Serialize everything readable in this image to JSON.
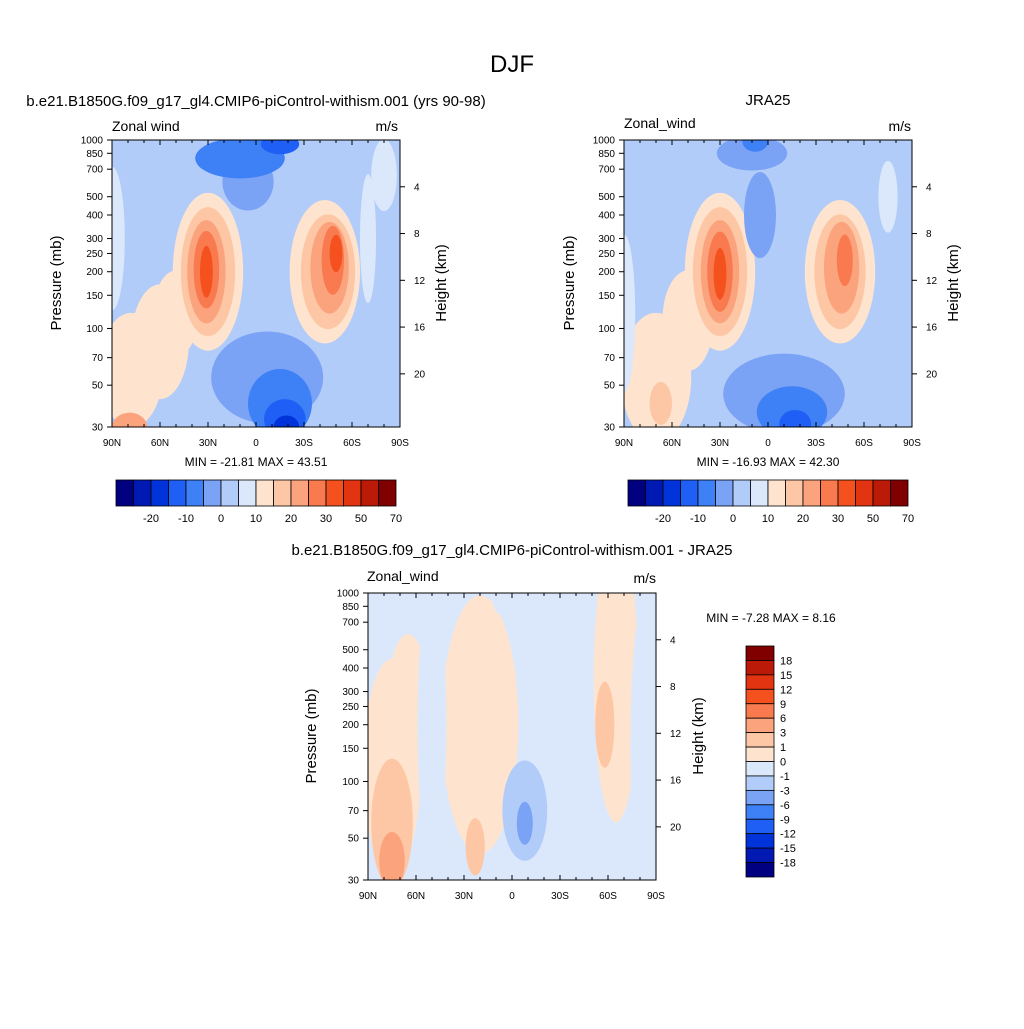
{
  "figure": {
    "title": "DJF"
  },
  "panels": [
    {
      "id": "model",
      "title": "b.e21.B1850G.f09_g17_gl4.CMIP6-piControl-withism.001 (yrs 90-98)",
      "left_label": "Zonal wind",
      "right_label": "m/s",
      "ylabel": "Pressure (mb)",
      "y2label": "Height (km)",
      "stats": "MIN = -21.81  MAX =  43.51"
    },
    {
      "id": "obs",
      "title": "JRA25",
      "left_label": "Zonal_wind",
      "right_label": "m/s",
      "ylabel": "Pressure (mb)",
      "y2label": "Height (km)",
      "stats": "MIN = -16.93  MAX =  42.30"
    },
    {
      "id": "diff",
      "title": "b.e21.B1850G.f09_g17_gl4.CMIP6-piControl-withism.001 - JRA25",
      "left_label": "Zonal_wind",
      "right_label": "m/s",
      "ylabel": "Pressure (mb)",
      "y2label": "Height (km)",
      "stats": "MIN =  -7.28  MAX =   8.16"
    }
  ],
  "chart_data": {
    "type": "heatmap",
    "x_axis": {
      "ticks": [
        "90N",
        "60N",
        "30N",
        "0",
        "30S",
        "60S",
        "90S"
      ],
      "range": [
        90,
        -90
      ]
    },
    "y_axis": {
      "scale": "log",
      "range": [
        1000,
        30
      ],
      "ticks": [
        30,
        50,
        70,
        100,
        150,
        200,
        250,
        300,
        400,
        500,
        700,
        850,
        1000
      ]
    },
    "y2_axis": {
      "ticks": [
        4,
        8,
        12,
        16,
        20
      ]
    },
    "main_colorbar": {
      "colors": [
        "#000080",
        "#0019b3",
        "#0033d9",
        "#1f5ff5",
        "#3e80f5",
        "#7aa2f5",
        "#b2ccfa",
        "#dbe8fb",
        "#fee4cf",
        "#fdc7a5",
        "#fba37d",
        "#f97a4f",
        "#f4511e",
        "#e23410",
        "#bb1a08",
        "#800000"
      ],
      "labels": [
        "-20",
        "-10",
        "0",
        "10",
        "20",
        "30",
        "50",
        "70"
      ]
    },
    "diff_colorbar": {
      "colors": [
        "#800000",
        "#bb1a08",
        "#e23410",
        "#f4511e",
        "#f97a4f",
        "#fba37d",
        "#fdc7a5",
        "#fee4cf",
        "#dbe8fb",
        "#b2ccfa",
        "#7aa2f5",
        "#3e80f5",
        "#1f5ff5",
        "#0033d9",
        "#0019b3",
        "#000080"
      ],
      "labels": [
        "18",
        "15",
        "12",
        "9",
        "6",
        "3",
        "1",
        "0",
        "-1",
        "-3",
        "-6",
        "-9",
        "-12",
        "-15",
        "-18"
      ]
    },
    "fields": {
      "model": {
        "background": "#b2ccfa",
        "features": [
          {
            "lat": 79,
            "p": 30,
            "w": 11,
            "h": 0.1,
            "level": 10
          },
          {
            "lat": 78,
            "p": 60,
            "w": 20,
            "h": 0.4,
            "level": 8
          },
          {
            "lat": 60,
            "p": 85,
            "w": 18,
            "h": 0.4,
            "level": 8
          },
          {
            "lat": 50,
            "p": 120,
            "w": 14,
            "h": 0.3,
            "level": 8
          },
          {
            "lat": 30,
            "p": 200,
            "w": 22,
            "h": 0.55,
            "level": 8
          },
          {
            "lat": 30,
            "p": 200,
            "w": 17,
            "h": 0.45,
            "level": 9
          },
          {
            "lat": 31,
            "p": 200,
            "w": 12,
            "h": 0.36,
            "level": 10
          },
          {
            "lat": 31,
            "p": 205,
            "w": 8,
            "h": 0.27,
            "level": 11
          },
          {
            "lat": 31,
            "p": 200,
            "w": 4,
            "h": 0.18,
            "level": 12
          },
          {
            "lat": -43,
            "p": 200,
            "w": 22,
            "h": 0.5,
            "level": 8
          },
          {
            "lat": -45,
            "p": 200,
            "w": 17,
            "h": 0.4,
            "level": 9
          },
          {
            "lat": -46,
            "p": 210,
            "w": 12,
            "h": 0.32,
            "level": 10
          },
          {
            "lat": -48,
            "p": 230,
            "w": 7,
            "h": 0.24,
            "level": 11
          },
          {
            "lat": -50,
            "p": 250,
            "w": 4,
            "h": 0.13,
            "level": 12
          },
          {
            "lat": -7,
            "p": 55,
            "w": 35,
            "h": 0.32,
            "level": 5
          },
          {
            "lat": -15,
            "p": 40,
            "w": 20,
            "h": 0.24,
            "level": 4
          },
          {
            "lat": -18,
            "p": 33,
            "w": 13,
            "h": 0.14,
            "level": 3
          },
          {
            "lat": -19,
            "p": 30,
            "w": 8,
            "h": 0.08,
            "level": 2
          },
          {
            "lat": 90,
            "p": 300,
            "w": 8,
            "h": 0.5,
            "level": 7
          },
          {
            "lat": 5,
            "p": 600,
            "w": 16,
            "h": 0.2,
            "level": 5
          },
          {
            "lat": 10,
            "p": 800,
            "w": 28,
            "h": 0.14,
            "level": 4
          },
          {
            "lat": -15,
            "p": 950,
            "w": 12,
            "h": 0.07,
            "level": 3
          },
          {
            "lat": -70,
            "p": 300,
            "w": 5,
            "h": 0.45,
            "level": 7
          },
          {
            "lat": -80,
            "p": 650,
            "w": 8,
            "h": 0.25,
            "level": 7
          }
        ]
      },
      "obs": {
        "background": "#b2ccfa",
        "features": [
          {
            "lat": 70,
            "p": 55,
            "w": 22,
            "h": 0.45,
            "level": 8
          },
          {
            "lat": 50,
            "p": 110,
            "w": 16,
            "h": 0.35,
            "level": 8
          },
          {
            "lat": 67,
            "p": 40,
            "w": 7,
            "h": 0.15,
            "level": 9
          },
          {
            "lat": 30,
            "p": 200,
            "w": 22,
            "h": 0.55,
            "level": 8
          },
          {
            "lat": 30,
            "p": 200,
            "w": 17,
            "h": 0.45,
            "level": 9
          },
          {
            "lat": 30,
            "p": 200,
            "w": 12,
            "h": 0.36,
            "level": 10
          },
          {
            "lat": 30,
            "p": 200,
            "w": 8,
            "h": 0.28,
            "level": 11
          },
          {
            "lat": 30,
            "p": 195,
            "w": 4,
            "h": 0.18,
            "level": 12
          },
          {
            "lat": -45,
            "p": 200,
            "w": 22,
            "h": 0.5,
            "level": 8
          },
          {
            "lat": -45,
            "p": 200,
            "w": 16,
            "h": 0.4,
            "level": 9
          },
          {
            "lat": -46,
            "p": 210,
            "w": 11,
            "h": 0.32,
            "level": 10
          },
          {
            "lat": -48,
            "p": 230,
            "w": 5,
            "h": 0.18,
            "level": 11
          },
          {
            "lat": -10,
            "p": 45,
            "w": 38,
            "h": 0.28,
            "level": 5
          },
          {
            "lat": -15,
            "p": 36,
            "w": 22,
            "h": 0.18,
            "level": 4
          },
          {
            "lat": -17,
            "p": 31,
            "w": 10,
            "h": 0.1,
            "level": 3
          },
          {
            "lat": 90,
            "p": 120,
            "w": 7,
            "h": 0.55,
            "level": 7
          },
          {
            "lat": 5,
            "p": 400,
            "w": 10,
            "h": 0.3,
            "level": 5
          },
          {
            "lat": 10,
            "p": 850,
            "w": 22,
            "h": 0.12,
            "level": 5
          },
          {
            "lat": 8,
            "p": 980,
            "w": 8,
            "h": 0.07,
            "level": 4
          },
          {
            "lat": -75,
            "p": 500,
            "w": 6,
            "h": 0.25,
            "level": 7
          }
        ]
      },
      "diff": {
        "background": "#dbe8fb",
        "features": [
          {
            "lat": 75,
            "p": 120,
            "w": 18,
            "h": 0.75,
            "level": 8
          },
          {
            "lat": 75,
            "p": 60,
            "w": 13,
            "h": 0.45,
            "level": 9
          },
          {
            "lat": 75,
            "p": 38,
            "w": 8,
            "h": 0.2,
            "level": 10
          },
          {
            "lat": 65,
            "p": 300,
            "w": 12,
            "h": 0.4,
            "level": 8
          },
          {
            "lat": 20,
            "p": 200,
            "w": 24,
            "h": 0.9,
            "level": 8
          },
          {
            "lat": 23,
            "p": 45,
            "w": 6,
            "h": 0.2,
            "level": 9
          },
          {
            "lat": -65,
            "p": 350,
            "w": 14,
            "h": 1.0,
            "level": 8
          },
          {
            "lat": -58,
            "p": 200,
            "w": 6,
            "h": 0.3,
            "level": 9
          },
          {
            "lat": -8,
            "p": 70,
            "w": 14,
            "h": 0.35,
            "level": 6
          },
          {
            "lat": -8,
            "p": 60,
            "w": 5,
            "h": 0.15,
            "level": 5
          },
          {
            "lat": 50,
            "p": 200,
            "w": 9,
            "h": 1.0,
            "level": 7
          },
          {
            "lat": -80,
            "p": 150,
            "w": 6,
            "h": 0.9,
            "level": 7
          },
          {
            "lat": 0,
            "p": 900,
            "w": 12,
            "h": 0.12,
            "level": 7
          }
        ]
      }
    }
  }
}
